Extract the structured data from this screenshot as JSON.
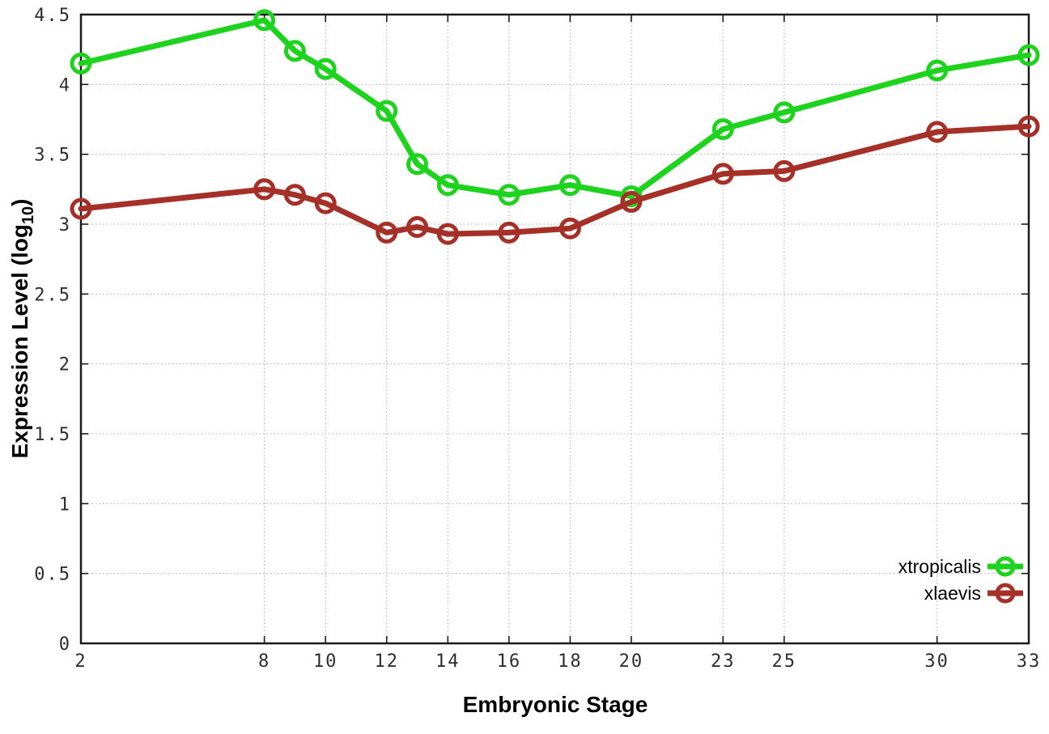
{
  "chart_data": {
    "type": "line",
    "title": "",
    "xlabel": "Embryonic Stage",
    "ylabel": "Expression Level (log10)",
    "ylabel_parts": {
      "pre": "Expression Level (log",
      "sub": "10",
      "post": ")"
    },
    "x": [
      2,
      8,
      9,
      10,
      12,
      13,
      14,
      16,
      18,
      20,
      23,
      25,
      30,
      33
    ],
    "x_ticks": [
      2,
      8,
      10,
      12,
      14,
      16,
      18,
      20,
      23,
      25,
      30,
      33
    ],
    "y_ticks": [
      0,
      0.5,
      1,
      1.5,
      2,
      2.5,
      3,
      3.5,
      4,
      4.5
    ],
    "xlim": [
      2,
      33
    ],
    "ylim": [
      0,
      4.5
    ],
    "grid": true,
    "legend_position": "bottom-right",
    "series": [
      {
        "name": "xtropicalis",
        "color": "#1ed31e",
        "marker": "open-circle",
        "values": [
          4.15,
          4.46,
          4.24,
          4.11,
          3.81,
          3.43,
          3.28,
          3.21,
          3.28,
          3.2,
          3.68,
          3.8,
          4.1,
          4.21
        ]
      },
      {
        "name": "xlaevis",
        "color": "#a53028",
        "marker": "open-circle",
        "values": [
          3.11,
          3.25,
          3.21,
          3.15,
          2.94,
          2.98,
          2.93,
          2.94,
          2.97,
          3.16,
          3.36,
          3.38,
          3.66,
          3.7
        ]
      }
    ]
  }
}
